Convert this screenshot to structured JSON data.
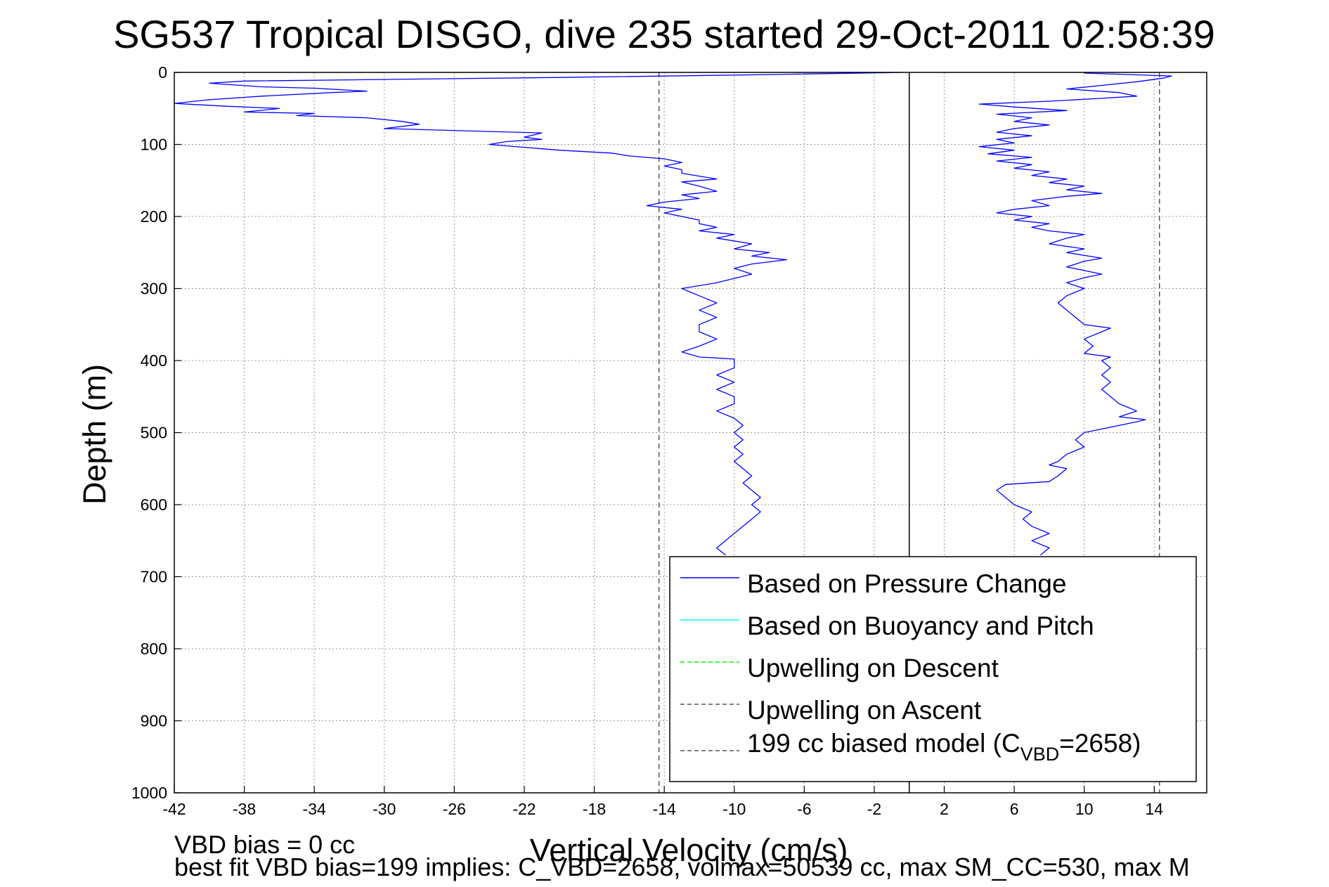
{
  "chart_data": {
    "type": "line",
    "title": "SG537 Tropical DISGO, dive 235 started 29-Oct-2011 02:58:39",
    "xlabel": "Vertical Velocity (cm/s)",
    "ylabel": "Depth (m)",
    "xlim": [
      -42,
      17
    ],
    "ylim": [
      0,
      1000
    ],
    "y_reversed": true,
    "grid": true,
    "x_ticks": [
      -42,
      -38,
      -34,
      -30,
      -26,
      -22,
      -18,
      -14,
      -10,
      -6,
      -2,
      2,
      6,
      10,
      14
    ],
    "y_ticks": [
      0,
      100,
      200,
      300,
      400,
      500,
      600,
      700,
      800,
      900,
      1000
    ],
    "reference_lines": [
      {
        "x": 0,
        "style": "solid",
        "color": "#000000"
      },
      {
        "x": -14.3,
        "style": "dashed",
        "color": "#555555"
      },
      {
        "x": 14.3,
        "style": "dashed",
        "color": "#555555"
      }
    ],
    "legend": {
      "position": "bottom-right",
      "entries": [
        {
          "label": "Based on Pressure Change",
          "color": "#0000ff",
          "style": "solid"
        },
        {
          "label": "Based on Buoyancy and Pitch",
          "color": "#00ffff",
          "style": "solid"
        },
        {
          "label": "Upwelling on Descent",
          "color": "#00ff00",
          "style": "dashed"
        },
        {
          "label": "Upwelling on Ascent",
          "color": "#555555",
          "style": "dashed"
        },
        {
          "label": "199 cc biased model (C",
          "sub": "VBD",
          "suffix": "=2658)",
          "color": "#555555",
          "style": "dashed"
        }
      ]
    },
    "series": [
      {
        "role": "descent",
        "color": "#0000ff",
        "style": "solid",
        "points": [
          [
            -0.5,
            0
          ],
          [
            -8,
            3
          ],
          [
            -20,
            7
          ],
          [
            -38,
            12
          ],
          [
            -40,
            15
          ],
          [
            -37,
            20
          ],
          [
            -34,
            22
          ],
          [
            -31,
            26
          ],
          [
            -33,
            28
          ],
          [
            -37,
            33
          ],
          [
            -40,
            38
          ],
          [
            -42,
            43
          ],
          [
            -39,
            47
          ],
          [
            -36,
            50
          ],
          [
            -38,
            55
          ],
          [
            -34,
            57
          ],
          [
            -35,
            60
          ],
          [
            -31,
            63
          ],
          [
            -29,
            68
          ],
          [
            -28,
            72
          ],
          [
            -30,
            78
          ],
          [
            -27,
            80
          ],
          [
            -24,
            82
          ],
          [
            -21,
            84
          ],
          [
            -22,
            90
          ],
          [
            -21,
            93
          ],
          [
            -23,
            96
          ],
          [
            -24,
            100
          ],
          [
            -22,
            104
          ],
          [
            -20,
            108
          ],
          [
            -17,
            112
          ],
          [
            -16,
            116
          ],
          [
            -14,
            120
          ],
          [
            -13,
            125
          ],
          [
            -14,
            130
          ],
          [
            -13,
            135
          ],
          [
            -13,
            140
          ],
          [
            -11,
            148
          ],
          [
            -13,
            152
          ],
          [
            -12,
            158
          ],
          [
            -11,
            165
          ],
          [
            -13,
            170
          ],
          [
            -12,
            175
          ],
          [
            -14,
            180
          ],
          [
            -15,
            185
          ],
          [
            -13,
            190
          ],
          [
            -14,
            195
          ],
          [
            -13,
            200
          ],
          [
            -12,
            205
          ],
          [
            -12,
            210
          ],
          [
            -11,
            215
          ],
          [
            -12,
            220
          ],
          [
            -10,
            225
          ],
          [
            -11,
            230
          ],
          [
            -9,
            238
          ],
          [
            -10,
            245
          ],
          [
            -8,
            250
          ],
          [
            -9,
            255
          ],
          [
            -7,
            260
          ],
          [
            -9,
            266
          ],
          [
            -10,
            272
          ],
          [
            -9,
            280
          ],
          [
            -10,
            286
          ],
          [
            -11,
            292
          ],
          [
            -13,
            300
          ],
          [
            -12,
            310
          ],
          [
            -11,
            320
          ],
          [
            -12,
            330
          ],
          [
            -11,
            340
          ],
          [
            -12,
            350
          ],
          [
            -12,
            360
          ],
          [
            -11,
            370
          ],
          [
            -12,
            380
          ],
          [
            -13,
            388
          ],
          [
            -12,
            395
          ],
          [
            -10,
            398
          ],
          [
            -10,
            410
          ],
          [
            -11,
            420
          ],
          [
            -10,
            430
          ],
          [
            -11,
            440
          ],
          [
            -10,
            450
          ],
          [
            -10,
            460
          ],
          [
            -11,
            470
          ],
          [
            -10,
            480
          ],
          [
            -9.5,
            490
          ],
          [
            -10,
            500
          ],
          [
            -9.5,
            510
          ],
          [
            -10,
            520
          ],
          [
            -9.5,
            530
          ],
          [
            -10,
            540
          ],
          [
            -9.5,
            550
          ],
          [
            -9,
            560
          ],
          [
            -9.5,
            570
          ],
          [
            -9,
            580
          ],
          [
            -8.5,
            590
          ],
          [
            -9,
            600
          ],
          [
            -8.5,
            610
          ],
          [
            -9,
            620
          ],
          [
            -9.5,
            630
          ],
          [
            -10,
            640
          ],
          [
            -10.5,
            650
          ],
          [
            -11,
            660
          ],
          [
            -10.5,
            670
          ]
        ]
      },
      {
        "role": "ascent",
        "color": "#0000ff",
        "style": "solid",
        "points": [
          [
            7.5,
            670
          ],
          [
            8,
            660
          ],
          [
            7,
            650
          ],
          [
            8,
            640
          ],
          [
            7,
            630
          ],
          [
            6.5,
            620
          ],
          [
            7,
            610
          ],
          [
            6,
            600
          ],
          [
            5.5,
            590
          ],
          [
            5,
            580
          ],
          [
            5.5,
            572
          ],
          [
            8,
            568
          ],
          [
            8.5,
            560
          ],
          [
            9,
            550
          ],
          [
            8,
            545
          ],
          [
            8.5,
            540
          ],
          [
            9,
            530
          ],
          [
            10,
            520
          ],
          [
            9.5,
            510
          ],
          [
            10,
            500
          ],
          [
            11,
            495
          ],
          [
            12,
            490
          ],
          [
            13,
            485
          ],
          [
            13.5,
            482
          ],
          [
            12,
            478
          ],
          [
            13,
            470
          ],
          [
            12.5,
            465
          ],
          [
            12,
            460
          ],
          [
            11.5,
            450
          ],
          [
            11,
            440
          ],
          [
            11.5,
            430
          ],
          [
            11,
            420
          ],
          [
            11.5,
            410
          ],
          [
            11,
            400
          ],
          [
            11.5,
            395
          ],
          [
            10,
            390
          ],
          [
            10.5,
            380
          ],
          [
            10,
            370
          ],
          [
            11,
            360
          ],
          [
            11.5,
            355
          ],
          [
            10,
            350
          ],
          [
            9.5,
            340
          ],
          [
            9,
            330
          ],
          [
            8.5,
            320
          ],
          [
            9,
            310
          ],
          [
            10,
            300
          ],
          [
            9,
            292
          ],
          [
            10,
            285
          ],
          [
            11,
            280
          ],
          [
            9,
            270
          ],
          [
            10,
            262
          ],
          [
            11,
            258
          ],
          [
            9,
            250
          ],
          [
            10,
            245
          ],
          [
            8,
            238
          ],
          [
            9,
            230
          ],
          [
            10,
            225
          ],
          [
            8,
            220
          ],
          [
            7,
            215
          ],
          [
            8,
            210
          ],
          [
            6,
            205
          ],
          [
            7,
            200
          ],
          [
            5,
            195
          ],
          [
            6,
            190
          ],
          [
            8,
            185
          ],
          [
            7,
            178
          ],
          [
            9,
            172
          ],
          [
            11,
            168
          ],
          [
            9,
            163
          ],
          [
            10,
            158
          ],
          [
            8,
            153
          ],
          [
            9,
            148
          ],
          [
            7,
            143
          ],
          [
            8,
            138
          ],
          [
            6,
            133
          ],
          [
            7,
            128
          ],
          [
            5,
            123
          ],
          [
            7,
            118
          ],
          [
            4.5,
            113
          ],
          [
            6,
            108
          ],
          [
            4,
            103
          ],
          [
            6,
            98
          ],
          [
            5,
            93
          ],
          [
            7,
            88
          ],
          [
            5,
            83
          ],
          [
            6,
            78
          ],
          [
            8,
            73
          ],
          [
            6,
            68
          ],
          [
            7,
            63
          ],
          [
            5,
            58
          ],
          [
            9,
            53
          ],
          [
            6,
            48
          ],
          [
            4,
            44
          ],
          [
            8,
            40
          ],
          [
            11,
            36
          ],
          [
            13,
            33
          ],
          [
            12,
            28
          ],
          [
            9,
            23
          ],
          [
            11,
            18
          ],
          [
            13,
            13
          ],
          [
            14.5,
            8
          ],
          [
            15,
            5
          ],
          [
            10,
            1
          ]
        ]
      }
    ],
    "footer": [
      "VBD bias = 0 cc",
      "best fit VBD bias=199 implies: C_VBD=2658, volmax=50539 cc, max SM_CC=530, max M"
    ]
  }
}
